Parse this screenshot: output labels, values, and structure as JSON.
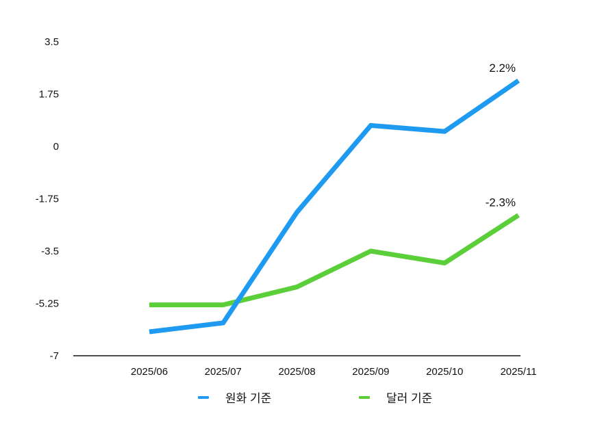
{
  "chart_data": {
    "type": "line",
    "title": "",
    "xlabel": "",
    "ylabel": "",
    "categories": [
      "2025/06",
      "2025/07",
      "2025/08",
      "2025/09",
      "2025/10",
      "2025/11"
    ],
    "y_ticks": [
      "3.5",
      "1.75",
      "0",
      "-1.75",
      "-3.5",
      "-5.25",
      "-7"
    ],
    "ylim": [
      -7,
      3.5
    ],
    "grid": false,
    "legend_position": "bottom",
    "series": [
      {
        "name": "원화 기준",
        "color": "#1E9BF0",
        "values": [
          -6.2,
          -5.9,
          -2.2,
          0.7,
          0.5,
          2.2
        ],
        "end_label": "2.2%"
      },
      {
        "name": "달러 기준",
        "color": "#5ACF3A",
        "values": [
          -5.3,
          -5.3,
          -4.7,
          -3.5,
          -3.9,
          -2.3
        ],
        "end_label": "-2.3%"
      }
    ]
  }
}
